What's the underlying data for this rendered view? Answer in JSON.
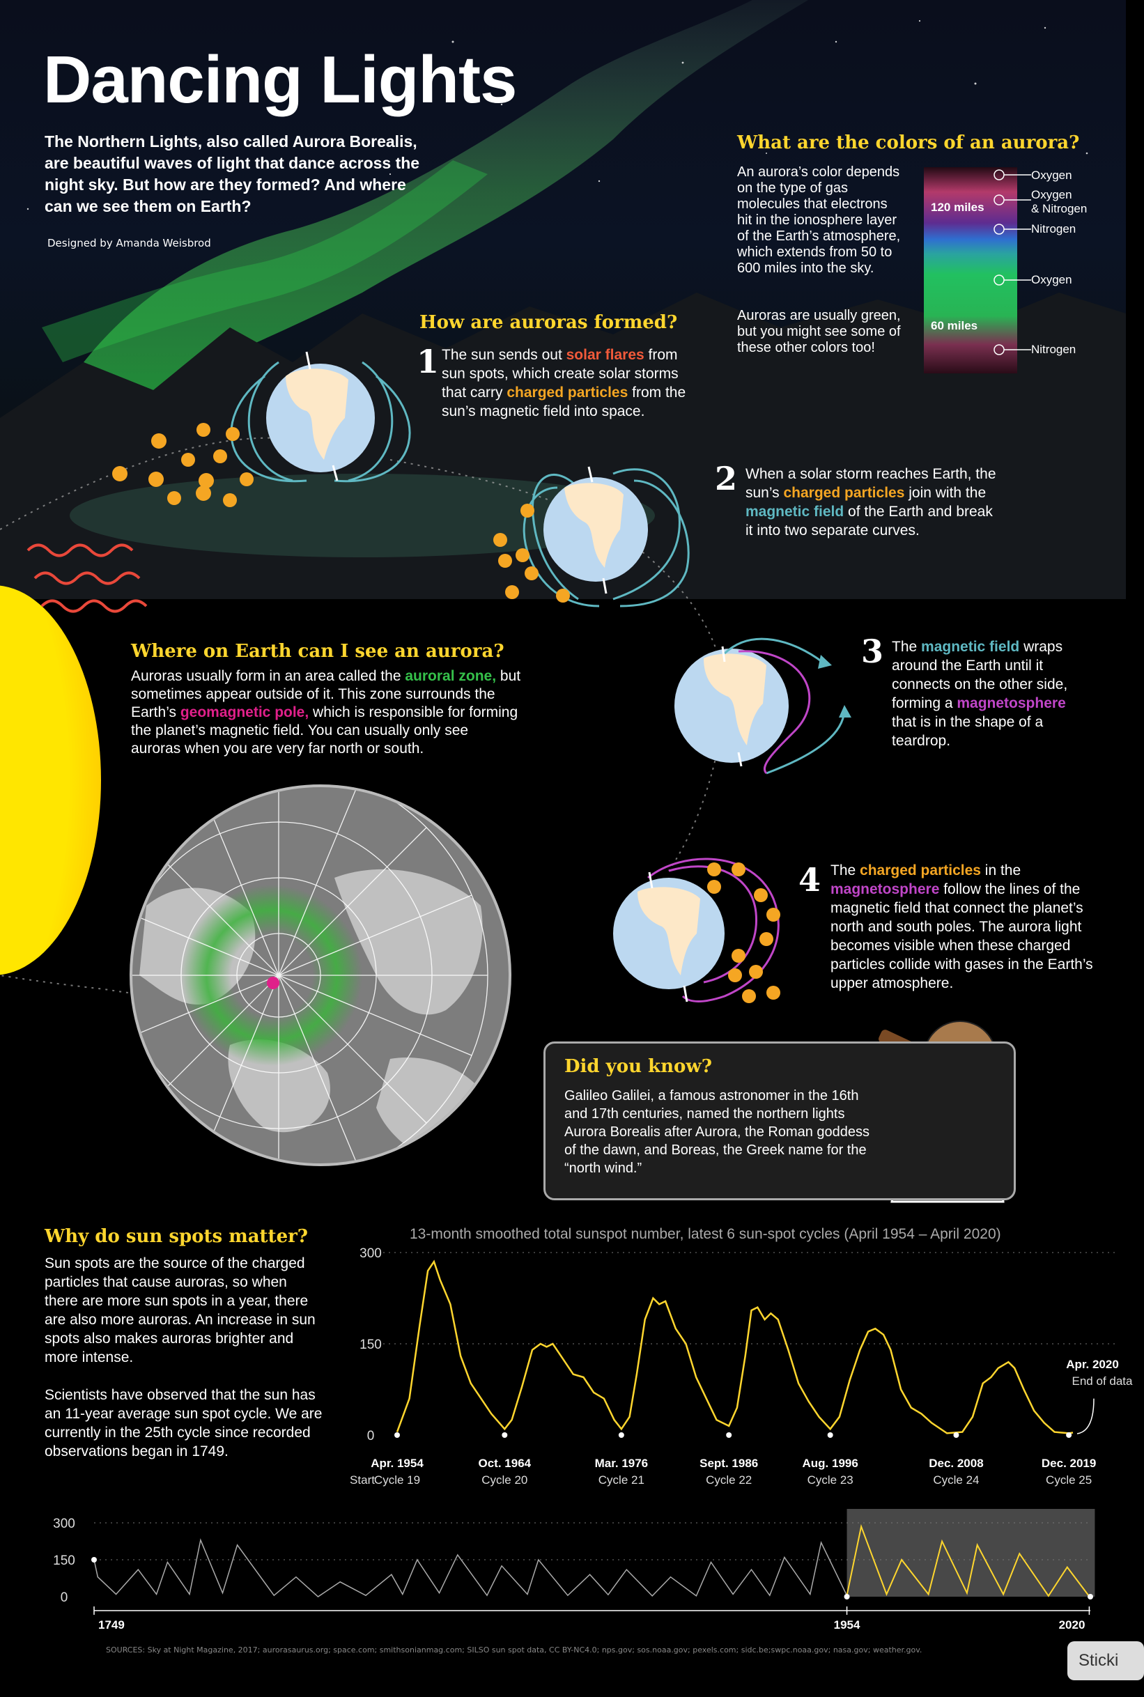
{
  "header": {
    "title": "Dancing Lights",
    "intro": "The Northern Lights, also called Aurora Borealis, are beautiful waves of light that dance across the night sky. But how are they formed? And where can we see them on Earth?",
    "byline": "Designed by Amanda Weisbrod"
  },
  "colors_section": {
    "heading": "What are the colors of an aurora?",
    "text1": "An aurora’s color depends on the type of gas molecules that electrons hit in the ionosphere layer of the Earth’s atmosphere, which extends from 50 to 600 miles into the sky.",
    "text2": "Auroras are usually green, but you might see some of these other colors too!",
    "label_120": "120 miles",
    "label_60": "60 miles",
    "gases": [
      "Oxygen",
      "Oxygen",
      "& Nitrogen",
      "Nitrogen",
      "Oxygen",
      "Nitrogen"
    ]
  },
  "formed_section": {
    "heading": "How are auroras formed?",
    "steps": [
      {
        "num": "1",
        "a": "The sun sends out ",
        "b": "solar flares",
        "c": " from sun spots, which create solar storms that carry ",
        "d": "charged particles",
        "e": " from the sun’s magnetic field into space."
      },
      {
        "num": "2",
        "a": "When a solar storm reaches Earth, the sun’s ",
        "b": "charged particles",
        "c": " join with the ",
        "d": "magnetic field",
        "e": " of the Earth and break it into two separate curves."
      },
      {
        "num": "3",
        "a": "The ",
        "b": "magnetic field",
        "c": " wraps around the Earth until it connects on the other side, forming a ",
        "d": "magnetosphere",
        "e": " that is in the shape of a teardrop."
      },
      {
        "num": "4",
        "a": "The ",
        "b": "charged particles",
        "c": " in the ",
        "d": "magnetosphere",
        "e": " follow the lines of the magnetic field that connect the planet’s north and south poles. The aurora light becomes visible when these charged particles collide with gases in the Earth’s upper atmosphere."
      }
    ]
  },
  "where_section": {
    "heading": "Where on Earth can I see an aurora?",
    "a": "Auroras usually form in an area called the ",
    "b": "auroral zone,",
    "c": " but sometimes appear outside of it. This zone surrounds the Earth’s ",
    "d": "geomagnetic pole,",
    "e": " which is responsible for forming the planet’s magnetic field. You can usually only see auroras when you are very far north or south."
  },
  "did_you_know": {
    "heading": "Did you know?",
    "text": "Galileo Galilei, a famous astronomer in the 16th and 17th centuries, named the northern lights Aurora Borealis after Aurora, the Roman goddess of the dawn, and Boreas, the Greek name for the “north wind.”"
  },
  "sunspots_section": {
    "heading": "Why do sun spots matter?",
    "text1": "Sun spots are the source of the charged particles that cause auroras, so when there are more sun spots in a year, there are also more auroras. An increase in sun spots also makes auroras brighter and more intense.",
    "text2": "Scientists have observed that the sun has an 11-year average sun spot cycle. We are currently in the 25th cycle since recorded observations began in 1749."
  },
  "chart_data": [
    {
      "type": "line",
      "title": "13-month smoothed total sunspot number, latest 6 sun-spot cycles (April 1954 – April 2020)",
      "ylim": [
        0,
        300
      ],
      "yticks": [
        "300",
        "150",
        "0"
      ],
      "x": [
        1954.3,
        1955.5,
        1956.5,
        1957.3,
        1957.9,
        1958.5,
        1959.5,
        1960.5,
        1961.5,
        1962.5,
        1963.5,
        1964.8,
        1965.5,
        1966.5,
        1967.5,
        1968.3,
        1968.9,
        1969.5,
        1970.5,
        1971.5,
        1972.5,
        1973.5,
        1974.5,
        1975.5,
        1976.2,
        1977.0,
        1977.7,
        1978.5,
        1979.3,
        1979.9,
        1980.5,
        1981.5,
        1982.5,
        1983.5,
        1984.5,
        1985.5,
        1986.7,
        1987.5,
        1988.3,
        1988.9,
        1989.5,
        1990.2,
        1990.8,
        1991.5,
        1992.5,
        1993.5,
        1994.5,
        1995.5,
        1996.6,
        1997.5,
        1998.5,
        1999.5,
        2000.3,
        2001.0,
        2001.8,
        2002.5,
        2003.5,
        2004.5,
        2005.5,
        2006.5,
        2008.0,
        2009.5,
        2010.5,
        2011.5,
        2012.3,
        2013.0,
        2014.0,
        2014.6,
        2015.5,
        2016.5,
        2017.5,
        2018.5,
        2019.9,
        2020.3
      ],
      "values": [
        5,
        60,
        180,
        270,
        285,
        255,
        215,
        130,
        85,
        60,
        35,
        10,
        25,
        80,
        140,
        150,
        145,
        150,
        125,
        100,
        95,
        70,
        60,
        25,
        10,
        30,
        100,
        190,
        225,
        215,
        220,
        175,
        150,
        95,
        60,
        25,
        15,
        45,
        130,
        205,
        210,
        190,
        200,
        190,
        140,
        85,
        55,
        30,
        10,
        30,
        90,
        140,
        170,
        175,
        165,
        140,
        75,
        45,
        35,
        20,
        3,
        5,
        30,
        85,
        95,
        110,
        120,
        110,
        75,
        40,
        20,
        5,
        3,
        4
      ],
      "x_ticks": [
        {
          "year": 1954.3,
          "label": "Apr. 1954",
          "cycle": "Cycle 19"
        },
        {
          "year": 1964.8,
          "label": "Oct. 1964",
          "cycle": "Cycle 20"
        },
        {
          "year": 1976.2,
          "label": "Mar. 1976",
          "cycle": "Cycle 21"
        },
        {
          "year": 1986.7,
          "label": "Sept. 1986",
          "cycle": "Cycle 22"
        },
        {
          "year": 1996.6,
          "label": "Aug. 1996",
          "cycle": "Cycle 23"
        },
        {
          "year": 2008.9,
          "label": "Dec. 2008",
          "cycle": "Cycle 24"
        },
        {
          "year": 2019.9,
          "label": "Dec. 2019",
          "cycle": "Cycle 25"
        }
      ],
      "start_label": "Start",
      "annotation": {
        "title": "Apr. 2020",
        "text": "End of data"
      }
    },
    {
      "type": "line",
      "ylim": [
        0,
        300
      ],
      "yticks": [
        "300",
        "150",
        "0"
      ],
      "x_labels": [
        "1749",
        "1954",
        "2020"
      ],
      "x": [
        1749,
        1750,
        1755,
        1761,
        1766,
        1769,
        1775,
        1778,
        1784,
        1788,
        1798,
        1804,
        1810,
        1816,
        1823,
        1830,
        1833,
        1837,
        1843,
        1848,
        1856,
        1860,
        1867,
        1870,
        1878,
        1884,
        1889,
        1894,
        1901,
        1906,
        1913,
        1917,
        1923,
        1928,
        1933,
        1937,
        1944,
        1947,
        1954,
        1957.9,
        1964.8,
        1968.9,
        1976.2,
        1979.9,
        1986.7,
        1989.5,
        1996.6,
        2001.0,
        2008.9,
        2014.0,
        2019.9,
        2020.3
      ],
      "values": [
        150,
        80,
        10,
        110,
        10,
        140,
        10,
        230,
        15,
        210,
        5,
        80,
        0,
        60,
        5,
        90,
        10,
        150,
        15,
        170,
        5,
        125,
        10,
        150,
        5,
        90,
        8,
        110,
        3,
        80,
        3,
        140,
        10,
        110,
        5,
        160,
        10,
        220,
        5,
        285,
        10,
        150,
        10,
        225,
        15,
        210,
        10,
        175,
        3,
        120,
        3,
        4
      ],
      "highlight": {
        "from": 1954,
        "to": 2020
      }
    }
  ],
  "sources": "SOURCES: Sky at Night Magazine, 2017; aurorasaurus.org; space.com; smithsonianmag.com; SILSO sun spot data, CC BY-NC4.0; nps.gov; sos.noaa.gov; pexels.com; sidc.be;swpc.noaa.gov; nasa.gov; weather.gov.",
  "sticky_label": "Sticki",
  "colors": {
    "yellow": "#ffd62e",
    "orange": "#f5a623",
    "teal": "#5fb8c2",
    "purple": "#c046c8",
    "green": "#35c04a",
    "magenta": "#e0208a",
    "red": "#f25a3a"
  }
}
